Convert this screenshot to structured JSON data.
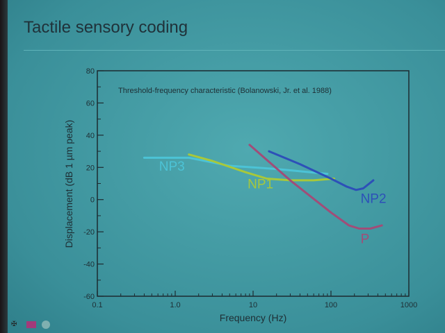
{
  "slide": {
    "title": "Tactile sensory coding"
  },
  "footer": {
    "icons": [
      "logo-icon",
      "flag-icon",
      "seal-icon"
    ]
  },
  "chart_data": {
    "type": "line",
    "title": "Threshold-frequency characteristic (Bolanowski, Jr. et al. 1988)",
    "xlabel": "Frequency (Hz)",
    "ylabel": "Displacement (dB 1 µm peak)",
    "xscale": "log",
    "xlim": [
      0.1,
      1000
    ],
    "ylim": [
      -60,
      80
    ],
    "xticks": [
      "0.1",
      "1.0",
      "10",
      "100",
      "1000"
    ],
    "xtick_values": [
      0.1,
      1,
      10,
      100,
      1000
    ],
    "yticks": [
      "80",
      "60",
      "40",
      "20",
      "0",
      "-20",
      "-40",
      "-60"
    ],
    "ytick_values": [
      80,
      60,
      40,
      20,
      0,
      -20,
      -40,
      -60
    ],
    "grid": false,
    "series": [
      {
        "name": "NP3",
        "color": "#4cc3d6",
        "x": [
          0.4,
          1.5,
          5,
          20,
          90
        ],
        "y": [
          26,
          26,
          21,
          19,
          16
        ],
        "label_at": [
          0.62,
          18
        ]
      },
      {
        "name": "NP1",
        "color": "#a8c83a",
        "x": [
          1.5,
          3,
          8,
          15,
          30,
          60,
          110
        ],
        "y": [
          28,
          24,
          17,
          13,
          12,
          12,
          13
        ],
        "label_at": [
          8.5,
          7
        ]
      },
      {
        "name": "NP2",
        "color": "#2d50b8",
        "x": [
          16,
          40,
          100,
          160,
          210,
          260,
          350
        ],
        "y": [
          30,
          22,
          13,
          8,
          6,
          7,
          12
        ],
        "label_at": [
          240,
          -2
        ]
      },
      {
        "name": "P",
        "color": "#a14d78",
        "x": [
          9,
          30,
          100,
          170,
          230,
          320,
          450
        ],
        "y": [
          34,
          12,
          -8,
          -16,
          -18,
          -18,
          -16
        ],
        "label_at": [
          240,
          -27
        ]
      }
    ]
  }
}
